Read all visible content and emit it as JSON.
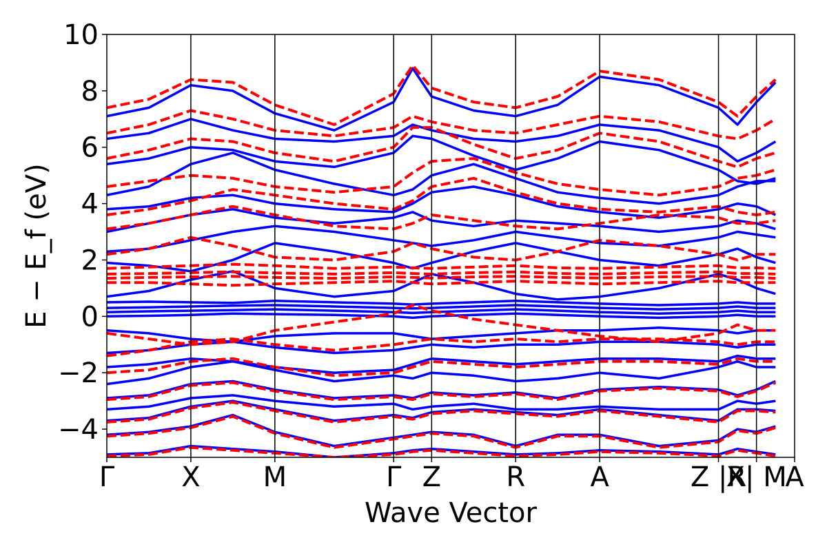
{
  "chart_data": {
    "type": "line",
    "title": "",
    "xlabel": "Wave Vector",
    "ylabel": "E − E_f (eV)",
    "ylim": [
      -5,
      10
    ],
    "yticks": [
      -4,
      -2,
      0,
      2,
      4,
      6,
      8,
      10
    ],
    "ytick_labels": [
      "−4",
      "−2",
      "0",
      "2",
      "4",
      "6",
      "8",
      "10"
    ],
    "kpath": {
      "labels": [
        "Γ",
        "X",
        "M",
        "Γ",
        "Z",
        "R",
        "A",
        "Z |R",
        "X| M",
        "A"
      ],
      "positions": [
        0,
        0.5,
        1.0,
        1.707,
        1.933,
        2.433,
        2.933,
        3.64,
        3.866,
        4.093
      ]
    },
    "segment_breaks": [
      3.64,
      3.866
    ],
    "grid": false,
    "legend": "none",
    "series": [
      {
        "color": "#0000ff",
        "style": "solid",
        "bands": [
          [
            -4.9,
            -4.85,
            -4.6,
            -4.7,
            -4.8,
            -5.0,
            -4.85,
            -4.75,
            -4.7,
            -4.8,
            -4.9,
            -4.85,
            -4.75,
            -4.8,
            -4.9,
            -4.7,
            -4.8,
            -4.9
          ],
          [
            -4.2,
            -4.1,
            -3.9,
            -3.5,
            -4.1,
            -4.6,
            -4.3,
            -4.2,
            -4.1,
            -4.2,
            -4.6,
            -4.2,
            -4.2,
            -4.6,
            -4.4,
            -4.0,
            -4.1,
            -3.9
          ],
          [
            -3.7,
            -3.6,
            -3.2,
            -3.0,
            -3.3,
            -3.7,
            -3.5,
            -3.6,
            -3.4,
            -3.3,
            -3.4,
            -3.5,
            -3.3,
            -3.5,
            -3.7,
            -3.3,
            -3.3,
            -3.35
          ],
          [
            -3.3,
            -3.2,
            -2.9,
            -2.8,
            -3.0,
            -3.2,
            -3.1,
            -3.3,
            -3.2,
            -3.1,
            -3.3,
            -3.3,
            -3.2,
            -3.3,
            -3.3,
            -3.0,
            -3.1,
            -3.0
          ],
          [
            -2.9,
            -2.8,
            -2.4,
            -2.3,
            -2.6,
            -2.9,
            -2.8,
            -2.9,
            -2.7,
            -2.8,
            -2.7,
            -2.9,
            -2.6,
            -2.5,
            -2.6,
            -2.8,
            -2.6,
            -2.3
          ],
          [
            -2.4,
            -2.2,
            -1.8,
            -1.6,
            -1.9,
            -2.3,
            -2.1,
            -2.2,
            -2.0,
            -2.1,
            -2.3,
            -2.2,
            -2.0,
            -2.2,
            -1.8,
            -1.6,
            -1.8,
            -1.8
          ],
          [
            -1.8,
            -1.7,
            -1.5,
            -1.6,
            -1.8,
            -2.0,
            -1.9,
            -1.7,
            -1.5,
            -1.6,
            -1.7,
            -1.6,
            -1.5,
            -1.5,
            -1.6,
            -1.4,
            -1.5,
            -1.5
          ],
          [
            -1.3,
            -1.2,
            -1.0,
            -0.9,
            -1.1,
            -1.3,
            -1.2,
            -1.1,
            -1.0,
            -1.1,
            -1.0,
            -1.0,
            -0.9,
            -0.9,
            -1.0,
            -1.1,
            -1.0,
            -1.0
          ],
          [
            -0.5,
            -0.6,
            -0.8,
            -0.9,
            -0.7,
            -0.6,
            -0.6,
            -0.7,
            -0.8,
            -0.7,
            -0.6,
            -0.5,
            -0.5,
            -0.4,
            -0.5,
            -0.6,
            -0.5,
            -0.5
          ],
          [
            0.0,
            0.02,
            0.05,
            0.1,
            0.08,
            0.05,
            0.0,
            -0.05,
            0.0,
            0.05,
            0.1,
            0.05,
            0.0,
            -0.05,
            0.0,
            0.05,
            0.0,
            0.0
          ],
          [
            0.15,
            0.18,
            0.2,
            0.22,
            0.25,
            0.2,
            0.15,
            0.12,
            0.15,
            0.2,
            0.25,
            0.2,
            0.15,
            0.1,
            0.15,
            0.2,
            0.15,
            0.15
          ],
          [
            0.3,
            0.32,
            0.35,
            0.38,
            0.4,
            0.35,
            0.3,
            0.28,
            0.3,
            0.35,
            0.4,
            0.35,
            0.3,
            0.25,
            0.3,
            0.35,
            0.3,
            0.3
          ],
          [
            0.5,
            0.52,
            0.5,
            0.48,
            0.55,
            0.5,
            0.45,
            0.42,
            0.45,
            0.5,
            0.55,
            0.5,
            0.45,
            0.4,
            0.45,
            0.5,
            0.45,
            0.45
          ],
          [
            0.7,
            0.9,
            1.3,
            1.6,
            1.0,
            0.7,
            0.9,
            1.2,
            1.5,
            1.2,
            0.8,
            0.6,
            0.7,
            1.0,
            1.5,
            1.3,
            1.0,
            0.8
          ],
          [
            1.9,
            1.8,
            1.6,
            2.0,
            2.6,
            2.3,
            1.9,
            1.7,
            1.9,
            2.3,
            2.6,
            2.3,
            2.0,
            1.8,
            2.2,
            2.4,
            2.1,
            1.9
          ],
          [
            2.3,
            2.4,
            2.7,
            3.0,
            3.2,
            3.0,
            2.7,
            2.6,
            2.5,
            2.7,
            3.0,
            2.8,
            2.6,
            2.5,
            2.8,
            3.0,
            2.9,
            2.8
          ],
          [
            3.0,
            3.3,
            3.6,
            3.8,
            3.5,
            3.3,
            3.5,
            3.7,
            3.4,
            3.2,
            3.4,
            3.3,
            3.2,
            3.0,
            3.2,
            3.4,
            3.3,
            3.1
          ],
          [
            3.8,
            3.9,
            4.2,
            4.3,
            4.0,
            3.8,
            3.7,
            4.0,
            4.4,
            4.6,
            4.3,
            3.9,
            3.7,
            3.5,
            3.8,
            4.0,
            3.9,
            3.6
          ],
          [
            4.3,
            4.6,
            5.4,
            5.8,
            5.2,
            4.7,
            4.3,
            4.5,
            5.0,
            5.4,
            4.9,
            4.4,
            4.2,
            4.0,
            4.3,
            4.6,
            4.8,
            4.8
          ],
          [
            5.4,
            5.6,
            6.0,
            5.9,
            5.5,
            5.3,
            5.8,
            6.4,
            6.3,
            5.7,
            5.2,
            5.6,
            6.2,
            5.9,
            5.2,
            4.8,
            4.7,
            4.9
          ],
          [
            6.3,
            6.5,
            7.0,
            6.6,
            6.3,
            6.2,
            6.4,
            6.8,
            6.6,
            6.3,
            6.2,
            6.4,
            6.8,
            6.6,
            6.0,
            5.5,
            5.8,
            6.2
          ],
          [
            7.1,
            7.4,
            8.2,
            8.0,
            7.2,
            6.6,
            7.6,
            8.8,
            7.8,
            7.3,
            7.1,
            7.5,
            8.5,
            8.2,
            7.4,
            6.8,
            7.6,
            8.3
          ]
        ]
      },
      {
        "color": "#ff0000",
        "style": "dashed",
        "bands": [
          [
            -4.95,
            -4.9,
            -4.65,
            -4.75,
            -4.85,
            -5.0,
            -4.9,
            -4.8,
            -4.75,
            -4.85,
            -4.95,
            -4.9,
            -4.8,
            -4.85,
            -4.95,
            -4.75,
            -4.85,
            -4.95
          ],
          [
            -4.25,
            -4.15,
            -3.95,
            -3.55,
            -4.15,
            -4.65,
            -4.35,
            -4.25,
            -4.15,
            -4.25,
            -4.65,
            -4.25,
            -4.25,
            -4.65,
            -4.45,
            -4.05,
            -4.15,
            -3.95
          ],
          [
            -3.75,
            -3.65,
            -3.25,
            -3.05,
            -3.35,
            -3.75,
            -3.55,
            -3.65,
            -3.45,
            -3.35,
            -3.45,
            -3.55,
            -3.35,
            -3.55,
            -3.75,
            -3.35,
            -3.35,
            -3.4
          ],
          [
            -2.95,
            -2.85,
            -2.45,
            -2.35,
            -2.65,
            -2.95,
            -2.85,
            -2.95,
            -2.75,
            -2.85,
            -2.75,
            -2.95,
            -2.65,
            -2.55,
            -2.65,
            -2.85,
            -2.65,
            -2.35
          ],
          [
            -2.0,
            -1.9,
            -1.6,
            -1.5,
            -1.8,
            -2.1,
            -2.0,
            -1.8,
            -1.6,
            -1.7,
            -1.8,
            -1.7,
            -1.6,
            -1.6,
            -1.7,
            -1.5,
            -1.6,
            -1.6
          ],
          [
            -1.4,
            -1.2,
            -0.9,
            -0.8,
            -1.0,
            -1.2,
            -1.0,
            -0.9,
            -0.8,
            -0.9,
            -0.8,
            -0.9,
            -0.8,
            -0.8,
            -0.9,
            -1.0,
            -0.9,
            -0.9
          ],
          [
            -0.6,
            -0.8,
            -1.0,
            -0.9,
            -0.5,
            -0.2,
            0.1,
            0.4,
            0.2,
            -0.1,
            -0.3,
            -0.5,
            -0.7,
            -0.9,
            -0.6,
            -0.3,
            -0.5,
            -0.5
          ],
          [
            1.2,
            1.2,
            1.15,
            1.1,
            1.15,
            1.2,
            1.25,
            1.2,
            1.15,
            1.2,
            1.25,
            1.2,
            1.15,
            1.2,
            1.25,
            1.2,
            1.2,
            1.2
          ],
          [
            1.35,
            1.38,
            1.4,
            1.42,
            1.38,
            1.35,
            1.4,
            1.38,
            1.36,
            1.4,
            1.42,
            1.38,
            1.36,
            1.4,
            1.42,
            1.38,
            1.38,
            1.35
          ],
          [
            1.5,
            1.52,
            1.55,
            1.58,
            1.54,
            1.5,
            1.55,
            1.52,
            1.5,
            1.55,
            1.58,
            1.52,
            1.5,
            1.55,
            1.58,
            1.52,
            1.52,
            1.5
          ],
          [
            1.7,
            1.75,
            1.8,
            1.85,
            1.8,
            1.7,
            1.75,
            1.72,
            1.7,
            1.75,
            1.8,
            1.72,
            1.7,
            1.75,
            1.8,
            1.72,
            1.72,
            1.7
          ],
          [
            2.2,
            2.4,
            2.8,
            2.5,
            2.1,
            2.0,
            2.3,
            2.6,
            2.4,
            2.1,
            2.0,
            2.3,
            2.7,
            2.5,
            2.2,
            2.0,
            2.2,
            2.2
          ],
          [
            3.1,
            3.3,
            3.6,
            3.9,
            3.6,
            3.2,
            3.1,
            3.3,
            3.6,
            3.4,
            3.2,
            3.1,
            3.3,
            3.6,
            3.5,
            3.3,
            3.3,
            3.4
          ],
          [
            3.6,
            3.8,
            4.1,
            4.5,
            4.3,
            4.0,
            3.8,
            4.1,
            4.6,
            4.9,
            4.4,
            4.0,
            3.8,
            3.7,
            3.9,
            3.7,
            3.6,
            3.7
          ],
          [
            4.6,
            4.8,
            5.0,
            4.9,
            4.6,
            4.4,
            4.6,
            5.1,
            5.5,
            5.6,
            5.1,
            4.7,
            4.5,
            4.3,
            4.6,
            4.9,
            5.0,
            5.2
          ],
          [
            5.6,
            5.9,
            6.3,
            6.2,
            5.8,
            5.5,
            6.0,
            6.7,
            6.7,
            6.1,
            5.6,
            5.9,
            6.5,
            6.2,
            5.5,
            5.3,
            5.6,
            5.8
          ],
          [
            6.5,
            6.8,
            7.3,
            7.0,
            6.6,
            6.4,
            6.7,
            7.1,
            6.9,
            6.6,
            6.5,
            6.8,
            7.1,
            6.9,
            6.4,
            6.3,
            6.6,
            7.0
          ],
          [
            7.4,
            7.7,
            8.4,
            8.3,
            7.5,
            6.8,
            7.9,
            8.9,
            8.1,
            7.6,
            7.4,
            7.8,
            8.7,
            8.4,
            7.6,
            7.1,
            7.8,
            8.4
          ]
        ]
      }
    ]
  }
}
